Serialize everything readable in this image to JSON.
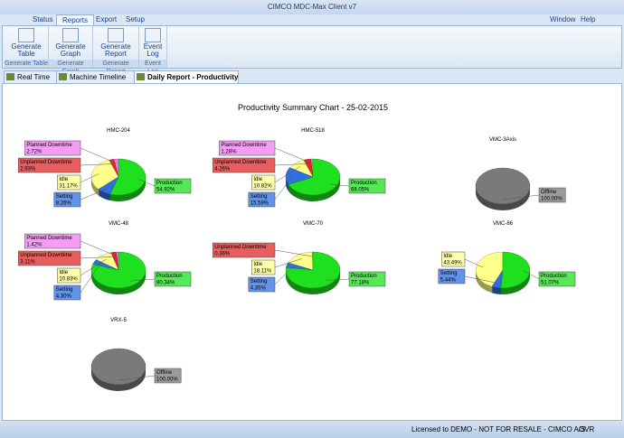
{
  "window": {
    "title": "CIMCO MDC-Max Client v7",
    "menu": [
      "Status",
      "Reports",
      "Export",
      "Setup"
    ],
    "right_menu": [
      "Window",
      "Help"
    ]
  },
  "ribbon": {
    "groups": [
      {
        "button": "Generate Table",
        "label": "Generate Table"
      },
      {
        "button": "Generate Graph",
        "label": "Generate Graph"
      },
      {
        "button": "Generate Report",
        "label": "Generate Report"
      },
      {
        "button": "Event Log",
        "label": "Event Log"
      }
    ]
  },
  "tabs": [
    "Real Time",
    "Machine Timeline",
    "Daily Report - Productivity S..."
  ],
  "report_title": "Productivity Summary Chart - 25-02-2015",
  "chart_data": [
    {
      "type": "pie",
      "title": "HMC-204",
      "categories": [
        "Planned Downtime",
        "Unplanned Downtime",
        "Idle",
        "Setting",
        "Production"
      ],
      "values": [
        2.72,
        2.93,
        31.17,
        8.26,
        54.92
      ],
      "value_labels": [
        "2.72%",
        "2.93%",
        "31.17%",
        "8.26%",
        "54.92%"
      ],
      "colors": [
        "#f07cf0",
        "#e02828",
        "#ffff8c",
        "#2f6fe0",
        "#1ee01e"
      ]
    },
    {
      "type": "pie",
      "title": "HMC-518",
      "categories": [
        "Planned Downtime",
        "Unplanned Downtime",
        "Idle",
        "Setting",
        "Production"
      ],
      "values": [
        1.28,
        4.26,
        10.82,
        15.59,
        68.05
      ],
      "value_labels": [
        "1.28%",
        "4.26%",
        "10.82%",
        "15.59%",
        "68.05%"
      ],
      "colors": [
        "#f07cf0",
        "#e02828",
        "#ffff8c",
        "#2f6fe0",
        "#1ee01e"
      ]
    },
    {
      "type": "pie",
      "title": "VMC-3Axis",
      "categories": [
        "Offline"
      ],
      "values": [
        100.0
      ],
      "value_labels": [
        "100.00%"
      ],
      "colors": [
        "#7a7a7a"
      ]
    },
    {
      "type": "pie",
      "title": "VMC-48",
      "categories": [
        "Planned Downtime",
        "Unplanned Downtime",
        "Idle",
        "Setting",
        "Production"
      ],
      "values": [
        1.42,
        3.11,
        10.83,
        4.3,
        80.34
      ],
      "value_labels": [
        "1.42%",
        "3.11%",
        "10.83%",
        "4.30%",
        "80.34%"
      ],
      "colors": [
        "#f07cf0",
        "#e02828",
        "#ffff8c",
        "#2f6fe0",
        "#1ee01e"
      ]
    },
    {
      "type": "pie",
      "title": "VMC-70",
      "categories": [
        "Unplanned Downtime",
        "Idle",
        "Setting",
        "Production"
      ],
      "values": [
        0.36,
        18.11,
        4.35,
        77.18
      ],
      "value_labels": [
        "0.36%",
        "18.11%",
        "4.35%",
        "77.18%"
      ],
      "colors": [
        "#e02828",
        "#ffff8c",
        "#2f6fe0",
        "#1ee01e"
      ]
    },
    {
      "type": "pie",
      "title": "VMC-86",
      "categories": [
        "Idle",
        "Setting",
        "Production"
      ],
      "values": [
        43.49,
        5.44,
        51.07
      ],
      "value_labels": [
        "43.49%",
        "5.44%",
        "51.07%"
      ],
      "colors": [
        "#ffff8c",
        "#2f6fe0",
        "#1ee01e"
      ]
    },
    {
      "type": "pie",
      "title": "VRX-5",
      "categories": [
        "Offline"
      ],
      "values": [
        100.0
      ],
      "value_labels": [
        "100.00%"
      ],
      "colors": [
        "#7a7a7a"
      ]
    }
  ],
  "status_bar": [
    "Licensed to DEMO - NOT FOR RESALE - CIMCO A/S",
    "OVR"
  ]
}
